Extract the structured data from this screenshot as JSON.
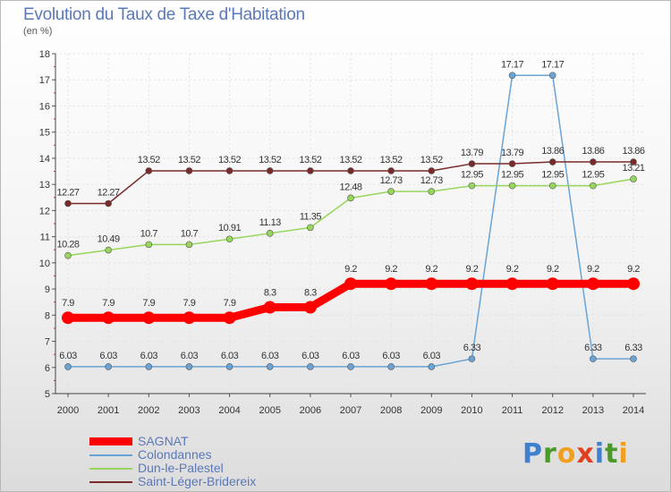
{
  "header": {
    "title": "Evolution du Taux de Taxe d'Habitation",
    "subtitle": "(en %)"
  },
  "logo": {
    "text": "Proxiti"
  },
  "chart_data": {
    "type": "line",
    "title": "Evolution du Taux de Taxe d'Habitation",
    "subtitle": "(en %)",
    "xlabel": "",
    "ylabel": "",
    "ylim": [
      5,
      18
    ],
    "yticks": [
      5,
      6,
      7,
      8,
      9,
      10,
      11,
      12,
      13,
      14,
      15,
      16,
      17,
      18
    ],
    "grid": true,
    "legend_position": "bottom-left",
    "x": [
      "2000",
      "2001",
      "2002",
      "2003",
      "2004",
      "2005",
      "2006",
      "2007",
      "2008",
      "2009",
      "2010",
      "2011",
      "2012",
      "2013",
      "2014"
    ],
    "series": [
      {
        "name": "SAGNAT",
        "color": "#ff0000",
        "values": [
          7.9,
          7.9,
          7.9,
          7.9,
          7.9,
          8.3,
          8.3,
          9.2,
          9.2,
          9.2,
          9.2,
          9.2,
          9.2,
          9.2,
          9.2
        ],
        "labels": [
          "7.9",
          "7.9",
          "7.9",
          "7.9",
          "7.9",
          "8.3",
          "8.3",
          "9.2",
          "9.2",
          "9.2",
          "9.2",
          "9.2",
          "9.2",
          "9.2",
          "9.2"
        ]
      },
      {
        "name": "Colondannes",
        "color": "#6aa4d6",
        "values": [
          6.03,
          6.03,
          6.03,
          6.03,
          6.03,
          6.03,
          6.03,
          6.03,
          6.03,
          6.03,
          6.33,
          17.17,
          17.17,
          6.33,
          6.33
        ],
        "labels": [
          "6.03",
          "6.03",
          "6.03",
          "6.03",
          "6.03",
          "6.03",
          "6.03",
          "6.03",
          "6.03",
          "6.03",
          "6.33",
          "17.17",
          "17.17",
          "6.33",
          "6.33"
        ]
      },
      {
        "name": "Dun-le-Palestel",
        "color": "#96d65a",
        "values": [
          10.28,
          10.49,
          10.7,
          10.7,
          10.91,
          11.13,
          11.35,
          12.48,
          12.73,
          12.73,
          12.95,
          12.95,
          12.95,
          12.95,
          13.21
        ],
        "labels": [
          "10.28",
          "10.49",
          "10.7",
          "10.7",
          "10.91",
          "11.13",
          "11.35",
          "12.48",
          "12.73",
          "12.73",
          "12.95",
          "12.95",
          "12.95",
          "12.95",
          "13.21"
        ]
      },
      {
        "name": "Saint-Léger-Bridereix",
        "color": "#7a2a2a",
        "values": [
          12.27,
          12.27,
          13.52,
          13.52,
          13.52,
          13.52,
          13.52,
          13.52,
          13.52,
          13.52,
          13.79,
          13.79,
          13.86,
          13.86,
          13.86
        ],
        "labels": [
          "12.27",
          "12.27",
          "13.52",
          "13.52",
          "13.52",
          "13.52",
          "13.52",
          "13.52",
          "13.52",
          "13.52",
          "13.79",
          "13.79",
          "13.86",
          "13.86",
          "13.86"
        ]
      }
    ]
  }
}
